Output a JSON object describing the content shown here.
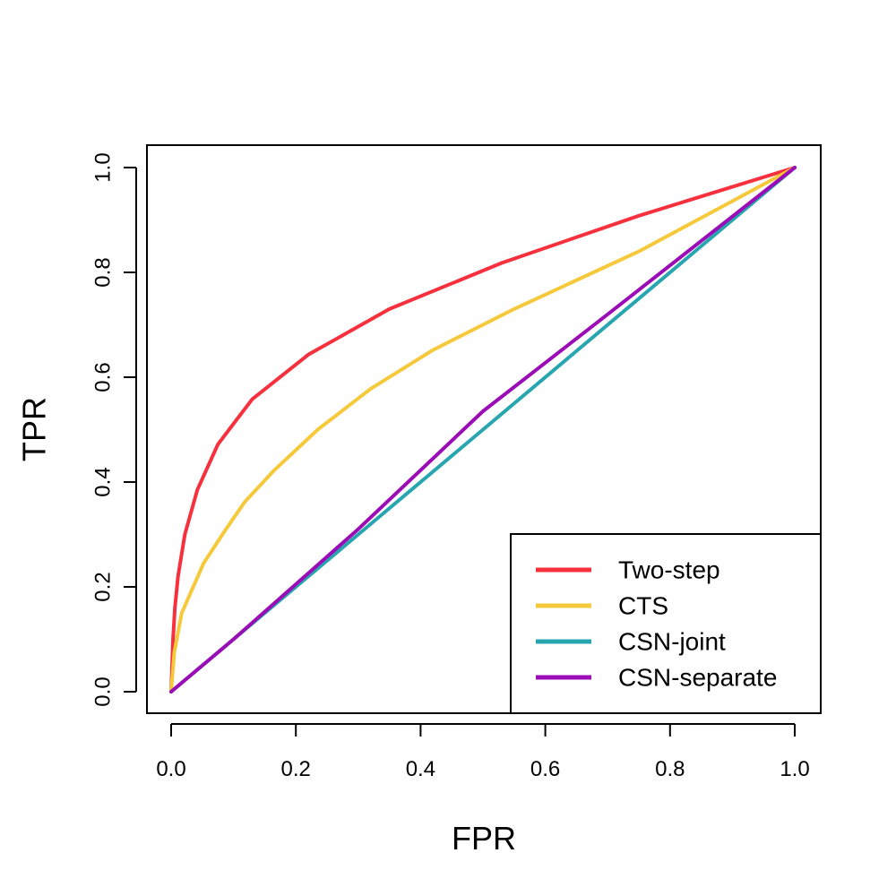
{
  "chart_data": {
    "type": "line",
    "title": "",
    "xlabel": "FPR",
    "ylabel": "TPR",
    "xlim": [
      0,
      1
    ],
    "ylim": [
      0,
      1
    ],
    "x_ticks": [
      "0.0",
      "0.2",
      "0.4",
      "0.6",
      "0.8",
      "1.0"
    ],
    "y_ticks": [
      "0.0",
      "0.2",
      "0.4",
      "0.6",
      "0.8",
      "1.0"
    ],
    "grid": false,
    "legend_position": "bottom-right",
    "series": [
      {
        "name": "Two-step",
        "color": "#f7303e",
        "points": [
          [
            0,
            0
          ],
          [
            0.003,
            0.1
          ],
          [
            0.006,
            0.16
          ],
          [
            0.011,
            0.22
          ],
          [
            0.022,
            0.3
          ],
          [
            0.042,
            0.385
          ],
          [
            0.075,
            0.472
          ],
          [
            0.13,
            0.558
          ],
          [
            0.22,
            0.643
          ],
          [
            0.35,
            0.73
          ],
          [
            0.53,
            0.818
          ],
          [
            0.75,
            0.908
          ],
          [
            1,
            1
          ]
        ]
      },
      {
        "name": "CTS",
        "color": "#f5c93a",
        "points": [
          [
            0,
            0
          ],
          [
            0.005,
            0.075
          ],
          [
            0.017,
            0.15
          ],
          [
            0.052,
            0.245
          ],
          [
            0.085,
            0.305
          ],
          [
            0.118,
            0.362
          ],
          [
            0.165,
            0.422
          ],
          [
            0.235,
            0.5
          ],
          [
            0.32,
            0.578
          ],
          [
            0.42,
            0.652
          ],
          [
            0.55,
            0.73
          ],
          [
            0.75,
            0.84
          ],
          [
            1,
            1
          ]
        ]
      },
      {
        "name": "CSN-joint",
        "color": "#27a6b0",
        "points": [
          [
            0,
            0
          ],
          [
            0.5,
            0.5
          ],
          [
            1,
            1
          ]
        ]
      },
      {
        "name": "CSN-separate",
        "color": "#9b0cb6",
        "points": [
          [
            0,
            0
          ],
          [
            0.1,
            0.1
          ],
          [
            0.3,
            0.31
          ],
          [
            0.5,
            0.535
          ],
          [
            0.7,
            0.72
          ],
          [
            1,
            1
          ]
        ]
      }
    ]
  }
}
